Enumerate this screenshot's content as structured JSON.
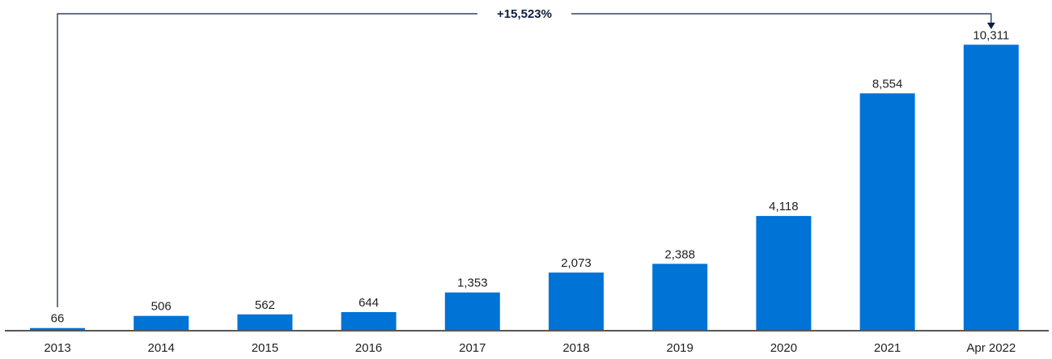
{
  "chart_data": {
    "type": "bar",
    "categories": [
      "2013",
      "2014",
      "2015",
      "2016",
      "2017",
      "2018",
      "2019",
      "2020",
      "2021",
      "Apr 2022"
    ],
    "values": [
      66,
      506,
      562,
      644,
      1353,
      2073,
      2388,
      4118,
      8554,
      10311
    ],
    "value_labels": [
      "66",
      "506",
      "562",
      "644",
      "1,353",
      "2,073",
      "2,388",
      "4,118",
      "8,554",
      "10,311"
    ],
    "title": "",
    "xlabel": "",
    "ylabel": "",
    "ylim": [
      0,
      11400
    ],
    "grid": false,
    "legend": "none",
    "bar_color": "#0073D6",
    "axis_color": "#1f1f1f",
    "annotation": {
      "text": "+15,523%",
      "from_category": "2013",
      "to_category": "Apr 2022",
      "color": "#0f1f3d"
    }
  }
}
